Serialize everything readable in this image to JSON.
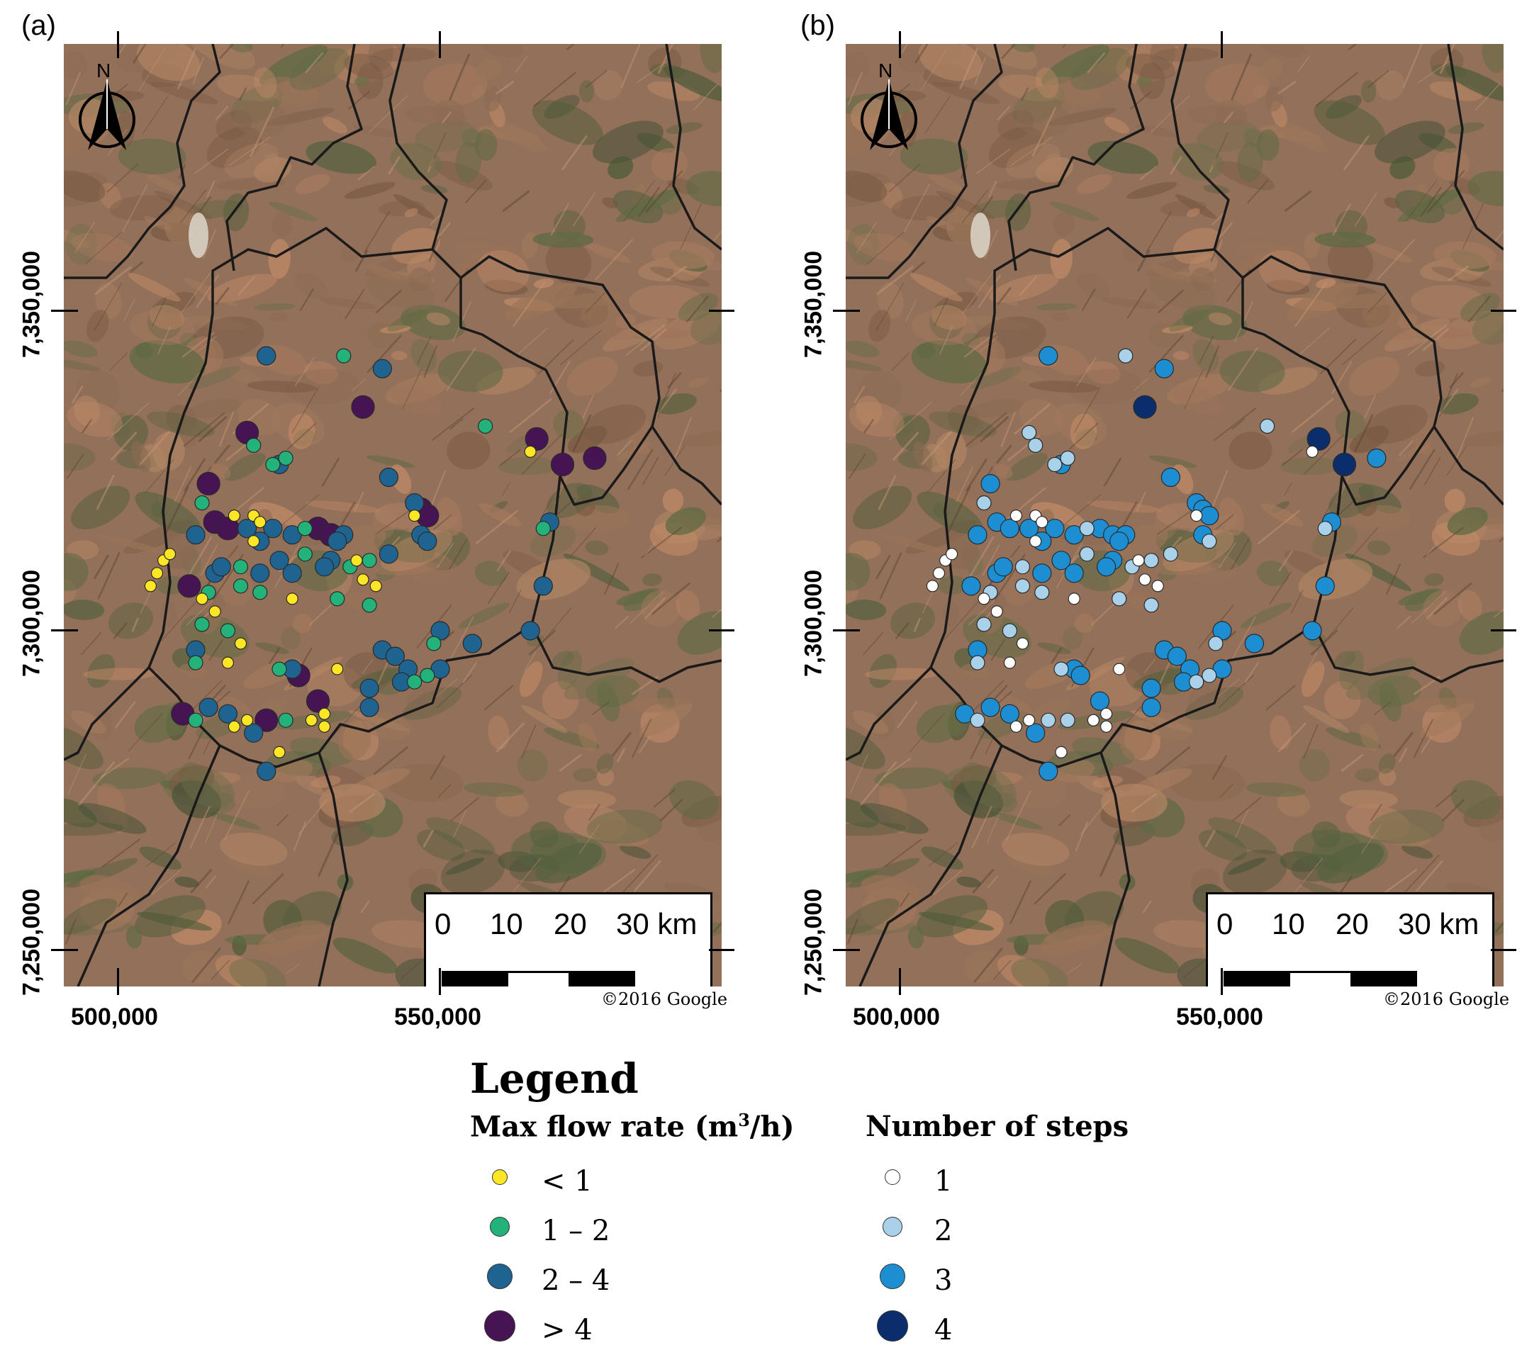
{
  "panels": [
    {
      "id": "a",
      "label": "(a)",
      "variable": "flow",
      "copyright": "©2016 Google"
    },
    {
      "id": "b",
      "label": "(b)",
      "variable": "steps",
      "copyright": "©2016 Google"
    }
  ],
  "axes": {
    "y_ticks": [
      "7,350,000",
      "7,300,000",
      "7,250,000"
    ],
    "x_ticks": [
      "500,000",
      "550,000"
    ]
  },
  "scale_bar": {
    "labels": [
      "0",
      "10",
      "20",
      "30 km"
    ]
  },
  "north_arrow": {
    "label": "N",
    "icon": "north-arrow-icon"
  },
  "legend": {
    "title": "Legend",
    "flow": {
      "title_main": "Max flow rate (m",
      "title_sup": "3",
      "title_end": "/h)",
      "classes": [
        {
          "label": "< 1",
          "color": "#fde725",
          "size": "small"
        },
        {
          "label": "1 – 2",
          "color": "#22b27a",
          "size": "medium"
        },
        {
          "label": "2 – 4",
          "color": "#1f6390",
          "size": "large"
        },
        {
          "label": "> 4",
          "color": "#461453",
          "size": "xlarge"
        }
      ]
    },
    "steps": {
      "title": "Number of steps",
      "classes": [
        {
          "label": "1",
          "color": "#ffffff",
          "size": "small"
        },
        {
          "label": "2",
          "color": "#a9d1ea",
          "size": "medium"
        },
        {
          "label": "3",
          "color": "#1d8ed2",
          "size": "large"
        },
        {
          "label": "4",
          "color": "#0c2d6b",
          "size": "xlarge"
        }
      ]
    }
  },
  "wells": [
    {
      "x": 523,
      "y": 7343,
      "f": 3,
      "s": 3
    },
    {
      "x": 535,
      "y": 7343,
      "f": 2,
      "s": 2
    },
    {
      "x": 541,
      "y": 7341,
      "f": 3,
      "s": 3
    },
    {
      "x": 538,
      "y": 7335,
      "f": 4,
      "s": 4
    },
    {
      "x": 557,
      "y": 7332,
      "f": 2,
      "s": 2
    },
    {
      "x": 520,
      "y": 7331,
      "f": 4,
      "s": 2
    },
    {
      "x": 521,
      "y": 7329,
      "f": 2,
      "s": 2
    },
    {
      "x": 565,
      "y": 7330,
      "f": 4,
      "s": 4
    },
    {
      "x": 564,
      "y": 7328,
      "f": 1,
      "s": 1
    },
    {
      "x": 569,
      "y": 7326,
      "f": 4,
      "s": 4
    },
    {
      "x": 574,
      "y": 7327,
      "f": 4,
      "s": 3
    },
    {
      "x": 524,
      "y": 7326,
      "f": 2,
      "s": 2
    },
    {
      "x": 526,
      "y": 7327,
      "f": 2,
      "s": 2
    },
    {
      "x": 525,
      "y": 7326,
      "f": 3,
      "s": 3
    },
    {
      "x": 542,
      "y": 7324,
      "f": 3,
      "s": 3
    },
    {
      "x": 514,
      "y": 7323,
      "f": 4,
      "s": 3
    },
    {
      "x": 513,
      "y": 7320,
      "f": 2,
      "s": 2
    },
    {
      "x": 546,
      "y": 7320,
      "f": 3,
      "s": 3
    },
    {
      "x": 547,
      "y": 7319,
      "f": 4,
      "s": 3
    },
    {
      "x": 548,
      "y": 7318,
      "f": 4,
      "s": 3
    },
    {
      "x": 546,
      "y": 7318,
      "f": 1,
      "s": 1
    },
    {
      "x": 512,
      "y": 7315,
      "f": 3,
      "s": 3
    },
    {
      "x": 515,
      "y": 7317,
      "f": 4,
      "s": 3
    },
    {
      "x": 517,
      "y": 7316,
      "f": 4,
      "s": 3
    },
    {
      "x": 518,
      "y": 7318,
      "f": 1,
      "s": 1
    },
    {
      "x": 520,
      "y": 7316,
      "f": 3,
      "s": 3
    },
    {
      "x": 521,
      "y": 7318,
      "f": 1,
      "s": 1
    },
    {
      "x": 522,
      "y": 7317,
      "f": 1,
      "s": 1
    },
    {
      "x": 524,
      "y": 7316,
      "f": 3,
      "s": 3
    },
    {
      "x": 527,
      "y": 7315,
      "f": 3,
      "s": 3
    },
    {
      "x": 529,
      "y": 7316,
      "f": 2,
      "s": 2
    },
    {
      "x": 531,
      "y": 7316,
      "f": 4,
      "s": 3
    },
    {
      "x": 533,
      "y": 7315,
      "f": 4,
      "s": 3
    },
    {
      "x": 535,
      "y": 7315,
      "f": 3,
      "s": 3
    },
    {
      "x": 534,
      "y": 7314,
      "f": 3,
      "s": 3
    },
    {
      "x": 521,
      "y": 7314,
      "f": 1,
      "s": 1
    },
    {
      "x": 522,
      "y": 7314,
      "f": 3,
      "s": 3
    },
    {
      "x": 547,
      "y": 7315,
      "f": 3,
      "s": 3
    },
    {
      "x": 548,
      "y": 7314,
      "f": 3,
      "s": 2
    },
    {
      "x": 542,
      "y": 7312,
      "f": 3,
      "s": 2
    },
    {
      "x": 529,
      "y": 7312,
      "f": 2,
      "s": 2
    },
    {
      "x": 533,
      "y": 7311,
      "f": 3,
      "s": 3
    },
    {
      "x": 536,
      "y": 7310,
      "f": 2,
      "s": 2
    },
    {
      "x": 537,
      "y": 7311,
      "f": 1,
      "s": 1
    },
    {
      "x": 539,
      "y": 7311,
      "f": 2,
      "s": 2
    },
    {
      "x": 566,
      "y": 7316,
      "f": 2,
      "s": 2
    },
    {
      "x": 567,
      "y": 7317,
      "f": 3,
      "s": 3
    },
    {
      "x": 507,
      "y": 7311,
      "f": 1,
      "s": 1
    },
    {
      "x": 508,
      "y": 7312,
      "f": 1,
      "s": 1
    },
    {
      "x": 506,
      "y": 7309,
      "f": 1,
      "s": 1
    },
    {
      "x": 505,
      "y": 7307,
      "f": 1,
      "s": 1
    },
    {
      "x": 515,
      "y": 7309,
      "f": 3,
      "s": 3
    },
    {
      "x": 516,
      "y": 7310,
      "f": 3,
      "s": 3
    },
    {
      "x": 519,
      "y": 7310,
      "f": 2,
      "s": 2
    },
    {
      "x": 522,
      "y": 7309,
      "f": 3,
      "s": 3
    },
    {
      "x": 525,
      "y": 7311,
      "f": 3,
      "s": 3
    },
    {
      "x": 527,
      "y": 7309,
      "f": 3,
      "s": 3
    },
    {
      "x": 532,
      "y": 7310,
      "f": 3,
      "s": 3
    },
    {
      "x": 538,
      "y": 7308,
      "f": 1,
      "s": 1
    },
    {
      "x": 540,
      "y": 7307,
      "f": 1,
      "s": 1
    },
    {
      "x": 511,
      "y": 7307,
      "f": 4,
      "s": 3
    },
    {
      "x": 514,
      "y": 7306,
      "f": 2,
      "s": 2
    },
    {
      "x": 513,
      "y": 7305,
      "f": 1,
      "s": 1
    },
    {
      "x": 519,
      "y": 7307,
      "f": 2,
      "s": 2
    },
    {
      "x": 522,
      "y": 7306,
      "f": 2,
      "s": 2
    },
    {
      "x": 527,
      "y": 7305,
      "f": 1,
      "s": 1
    },
    {
      "x": 534,
      "y": 7305,
      "f": 2,
      "s": 2
    },
    {
      "x": 539,
      "y": 7304,
      "f": 2,
      "s": 2
    },
    {
      "x": 566,
      "y": 7307,
      "f": 3,
      "s": 3
    },
    {
      "x": 515,
      "y": 7303,
      "f": 1,
      "s": 1
    },
    {
      "x": 513,
      "y": 7301,
      "f": 2,
      "s": 2
    },
    {
      "x": 517,
      "y": 7300,
      "f": 2,
      "s": 2
    },
    {
      "x": 519,
      "y": 7298,
      "f": 1,
      "s": 1
    },
    {
      "x": 512,
      "y": 7297,
      "f": 3,
      "s": 3
    },
    {
      "x": 512,
      "y": 7295,
      "f": 2,
      "s": 2
    },
    {
      "x": 517,
      "y": 7295,
      "f": 1,
      "s": 1
    },
    {
      "x": 525,
      "y": 7294,
      "f": 2,
      "s": 2
    },
    {
      "x": 527,
      "y": 7294,
      "f": 3,
      "s": 3
    },
    {
      "x": 528,
      "y": 7293,
      "f": 4,
      "s": 3
    },
    {
      "x": 534,
      "y": 7294,
      "f": 1,
      "s": 1
    },
    {
      "x": 541,
      "y": 7297,
      "f": 3,
      "s": 3
    },
    {
      "x": 543,
      "y": 7296,
      "f": 3,
      "s": 3
    },
    {
      "x": 545,
      "y": 7294,
      "f": 3,
      "s": 3
    },
    {
      "x": 544,
      "y": 7292,
      "f": 3,
      "s": 3
    },
    {
      "x": 546,
      "y": 7292,
      "f": 2,
      "s": 2
    },
    {
      "x": 539,
      "y": 7291,
      "f": 3,
      "s": 3
    },
    {
      "x": 548,
      "y": 7293,
      "f": 2,
      "s": 2
    },
    {
      "x": 550,
      "y": 7294,
      "f": 3,
      "s": 3
    },
    {
      "x": 549,
      "y": 7298,
      "f": 2,
      "s": 2
    },
    {
      "x": 550,
      "y": 7300,
      "f": 3,
      "s": 3
    },
    {
      "x": 555,
      "y": 7298,
      "f": 3,
      "s": 3
    },
    {
      "x": 564,
      "y": 7300,
      "f": 3,
      "s": 3
    },
    {
      "x": 510,
      "y": 7287,
      "f": 4,
      "s": 3
    },
    {
      "x": 512,
      "y": 7286,
      "f": 2,
      "s": 2
    },
    {
      "x": 514,
      "y": 7288,
      "f": 3,
      "s": 3
    },
    {
      "x": 517,
      "y": 7287,
      "f": 3,
      "s": 3
    },
    {
      "x": 518,
      "y": 7285,
      "f": 1,
      "s": 1
    },
    {
      "x": 520,
      "y": 7286,
      "f": 1,
      "s": 1
    },
    {
      "x": 521,
      "y": 7284,
      "f": 3,
      "s": 3
    },
    {
      "x": 523,
      "y": 7286,
      "f": 4,
      "s": 2
    },
    {
      "x": 526,
      "y": 7286,
      "f": 2,
      "s": 2
    },
    {
      "x": 530,
      "y": 7286,
      "f": 1,
      "s": 1
    },
    {
      "x": 531,
      "y": 7289,
      "f": 4,
      "s": 3
    },
    {
      "x": 532,
      "y": 7287,
      "f": 1,
      "s": 1
    },
    {
      "x": 532,
      "y": 7285,
      "f": 1,
      "s": 1
    },
    {
      "x": 539,
      "y": 7288,
      "f": 3,
      "s": 3
    },
    {
      "x": 525,
      "y": 7281,
      "f": 1,
      "s": 1
    },
    {
      "x": 523,
      "y": 7278,
      "f": 3,
      "s": 3
    }
  ],
  "colors": {
    "flow": [
      "#fde725",
      "#22b27a",
      "#1f6390",
      "#461453"
    ],
    "steps": [
      "#ffffff",
      "#a9d1ea",
      "#1d8ed2",
      "#0c2d6b"
    ],
    "boundary": "#1a1a1a"
  }
}
